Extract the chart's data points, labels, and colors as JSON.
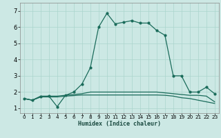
{
  "title": "",
  "xlabel": "Humidex (Indice chaleur)",
  "background_color": "#cce8e4",
  "grid_color": "#aad4cc",
  "line_color": "#1a6b5a",
  "xlim": [
    -0.5,
    23.5
  ],
  "ylim": [
    0.7,
    7.5
  ],
  "yticks": [
    1,
    2,
    3,
    4,
    5,
    6,
    7
  ],
  "xticks": [
    0,
    1,
    2,
    3,
    4,
    5,
    6,
    7,
    8,
    9,
    10,
    11,
    12,
    13,
    14,
    15,
    16,
    17,
    18,
    19,
    20,
    21,
    22,
    23
  ],
  "series1_x": [
    0,
    1,
    2,
    3,
    4,
    5,
    6,
    7,
    8,
    9,
    10,
    11,
    12,
    13,
    14,
    15,
    16,
    17,
    18,
    19,
    20,
    21,
    22,
    23
  ],
  "series1_y": [
    1.6,
    1.5,
    1.7,
    1.75,
    1.1,
    1.8,
    2.0,
    2.5,
    3.5,
    6.0,
    6.85,
    6.2,
    6.3,
    6.4,
    6.25,
    6.25,
    5.8,
    5.5,
    3.0,
    3.0,
    2.0,
    2.0,
    2.3,
    1.9
  ],
  "series2_x": [
    0,
    1,
    2,
    3,
    4,
    5,
    6,
    7,
    8,
    9,
    10,
    11,
    12,
    13,
    14,
    15,
    16,
    17,
    18,
    19,
    20,
    21,
    22,
    23
  ],
  "series2_y": [
    1.6,
    1.5,
    1.75,
    1.75,
    1.75,
    1.8,
    1.85,
    1.9,
    2.0,
    2.0,
    2.0,
    2.0,
    2.0,
    2.0,
    2.0,
    2.0,
    2.0,
    1.95,
    1.9,
    1.85,
    1.8,
    1.8,
    1.75,
    1.4
  ],
  "series3_x": [
    0,
    1,
    2,
    3,
    4,
    5,
    6,
    7,
    8,
    9,
    10,
    11,
    12,
    13,
    14,
    15,
    16,
    17,
    18,
    19,
    20,
    21,
    22,
    23
  ],
  "series3_y": [
    1.6,
    1.5,
    1.7,
    1.7,
    1.7,
    1.75,
    1.78,
    1.82,
    1.82,
    1.82,
    1.82,
    1.82,
    1.82,
    1.82,
    1.82,
    1.82,
    1.82,
    1.8,
    1.75,
    1.65,
    1.6,
    1.5,
    1.4,
    1.3
  ]
}
